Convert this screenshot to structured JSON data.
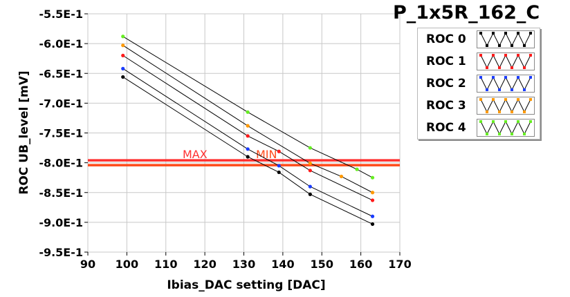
{
  "chart_data": {
    "type": "line",
    "title": "P_1x5R_162_C",
    "xlabel": "Ibias_DAC setting [DAC]",
    "ylabel": "ROC UB_level [mV]",
    "xlim": [
      90,
      170
    ],
    "ylim": [
      -0.95,
      -0.55
    ],
    "x_ticks": [
      90,
      100,
      110,
      120,
      130,
      140,
      150,
      160,
      170
    ],
    "x_tick_labels": [
      "90",
      "100",
      "110",
      "120",
      "130",
      "140",
      "150",
      "160",
      "170"
    ],
    "y_ticks": [
      -0.55,
      -0.6,
      -0.65,
      -0.7,
      -0.75,
      -0.8,
      -0.85,
      -0.9,
      -0.95
    ],
    "y_tick_labels": [
      "-5.5E-1",
      "-6.0E-1",
      "-6.5E-1",
      "-7.0E-1",
      "-7.5E-1",
      "-8.0E-1",
      "-8.5E-1",
      "-9.0E-1",
      "-9.5E-1"
    ],
    "grid": true,
    "legend_position": "top-right",
    "series": [
      {
        "name": "ROC 0",
        "color": "#000000",
        "x": [
          99,
          131,
          139,
          147,
          163
        ],
        "y": [
          -0.656,
          -0.79,
          -0.816,
          -0.853,
          -0.903
        ]
      },
      {
        "name": "ROC 1",
        "color": "#ff1a1a",
        "x": [
          99,
          131,
          139,
          147,
          163
        ],
        "y": [
          -0.62,
          -0.755,
          -0.781,
          -0.813,
          -0.863
        ]
      },
      {
        "name": "ROC 2",
        "color": "#1a3cff",
        "x": [
          99,
          131,
          139,
          147,
          163
        ],
        "y": [
          -0.642,
          -0.777,
          -0.805,
          -0.84,
          -0.89
        ]
      },
      {
        "name": "ROC 3",
        "color": "#ff9900",
        "x": [
          99,
          131,
          147,
          155,
          163
        ],
        "y": [
          -0.603,
          -0.738,
          -0.801,
          -0.823,
          -0.85
        ]
      },
      {
        "name": "ROC 4",
        "color": "#66ee22",
        "x": [
          99,
          131,
          147,
          159,
          163
        ],
        "y": [
          -0.588,
          -0.715,
          -0.775,
          -0.811,
          -0.825
        ]
      }
    ],
    "thresholds": [
      {
        "label": "MAX",
        "y": -0.796,
        "color": "#ff3030"
      },
      {
        "label": "MIN",
        "y": -0.804,
        "color": "#ff4a1a"
      }
    ]
  }
}
